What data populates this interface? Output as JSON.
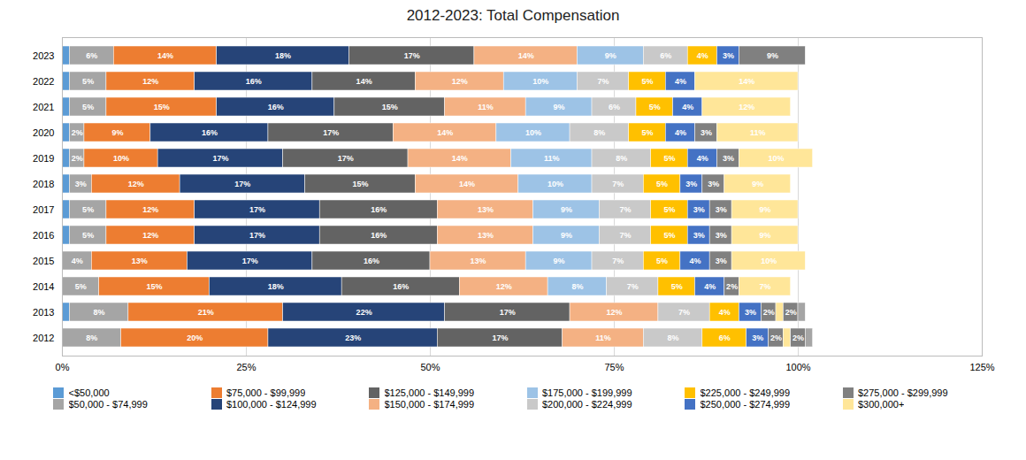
{
  "chart_data": {
    "type": "bar",
    "title": "2012-2023: Total Compensation",
    "orientation": "horizontal",
    "stacked": true,
    "data_labels": true,
    "grid": true,
    "legend": "bottom",
    "categories": [
      "2023",
      "2022",
      "2021",
      "2020",
      "2019",
      "2018",
      "2017",
      "2016",
      "2015",
      "2014",
      "2013",
      "2012"
    ],
    "xlim": [
      0,
      125
    ],
    "xticks": [
      {
        "value": 0,
        "label": "0%"
      },
      {
        "value": 25,
        "label": "25%"
      },
      {
        "value": 50,
        "label": "50%"
      },
      {
        "value": 75,
        "label": "75%"
      },
      {
        "value": 100,
        "label": "100%"
      },
      {
        "value": 125,
        "label": "125%"
      }
    ],
    "series": [
      {
        "name": "<$50,000",
        "color": "#5b9bd5",
        "values": [
          1,
          1,
          1,
          1,
          1,
          1,
          1,
          1,
          0,
          0,
          1,
          0
        ],
        "value_labels": [
          null,
          null,
          null,
          null,
          null,
          null,
          null,
          null,
          null,
          null,
          null,
          null
        ]
      },
      {
        "name": "$50,000 - $74,999",
        "color": "#a5a5a5",
        "values": [
          6,
          5,
          5,
          2,
          2,
          3,
          5,
          5,
          4,
          5,
          8,
          8
        ],
        "value_labels": [
          "6%",
          "5%",
          "5%",
          "2%",
          "2%",
          "3%",
          "5%",
          "5%",
          "4%",
          "5%",
          "8%",
          "8%"
        ]
      },
      {
        "name": "$75,000 - $99,999",
        "color": "#ed7d31",
        "values": [
          14,
          12,
          15,
          9,
          10,
          12,
          12,
          12,
          13,
          15,
          21,
          20
        ],
        "value_labels": [
          "14%",
          "12%",
          "15%",
          "9%",
          "10%",
          "12%",
          "12%",
          "12%",
          "13%",
          "15%",
          "21%",
          "20%"
        ]
      },
      {
        "name": "$100,000 - $124,999",
        "color": "#264478",
        "values": [
          18,
          16,
          16,
          16,
          17,
          17,
          17,
          17,
          17,
          18,
          22,
          23
        ],
        "value_labels": [
          "18%",
          "16%",
          "16%",
          "16%",
          "17%",
          "17%",
          "17%",
          "17%",
          "17%",
          "18%",
          "22%",
          "23%"
        ]
      },
      {
        "name": "$125,000 - $149,999",
        "color": "#636363",
        "values": [
          17,
          14,
          15,
          17,
          17,
          15,
          16,
          16,
          16,
          16,
          17,
          17
        ],
        "value_labels": [
          "17%",
          "14%",
          "15%",
          "17%",
          "17%",
          "15%",
          "16%",
          "16%",
          "16%",
          "16%",
          "17%",
          "17%"
        ]
      },
      {
        "name": "$150,000 - $174,999",
        "color": "#f4b183",
        "values": [
          14,
          12,
          11,
          14,
          14,
          14,
          13,
          13,
          13,
          12,
          12,
          11
        ],
        "value_labels": [
          "14%",
          "12%",
          "11%",
          "14%",
          "14%",
          "14%",
          "13%",
          "13%",
          "13%",
          "12%",
          "12%",
          "11%"
        ]
      },
      {
        "name": "$175,000 - $199,999",
        "color": "#9dc3e6",
        "values": [
          9,
          10,
          9,
          10,
          11,
          10,
          9,
          9,
          9,
          8,
          0,
          0
        ],
        "value_labels": [
          "9%",
          "10%",
          "9%",
          "10%",
          "11%",
          "10%",
          "9%",
          "9%",
          "9%",
          "8%",
          null,
          null
        ]
      },
      {
        "name": "$200,000 - $224,999",
        "color": "#c9c9c9",
        "values": [
          6,
          7,
          6,
          8,
          8,
          7,
          7,
          7,
          7,
          7,
          7,
          8
        ],
        "value_labels": [
          "6%",
          "7%",
          "6%",
          "8%",
          "8%",
          "7%",
          "7%",
          "7%",
          "7%",
          "7%",
          "7%",
          "8%"
        ]
      },
      {
        "name": "$225,000 - $249,999",
        "color": "#ffc000",
        "values": [
          4,
          5,
          5,
          5,
          5,
          5,
          5,
          5,
          5,
          5,
          4,
          6
        ],
        "value_labels": [
          "4%",
          "5%",
          "5%",
          "5%",
          "5%",
          "5%",
          "5%",
          "5%",
          "5%",
          "5%",
          "4%",
          "6%"
        ]
      },
      {
        "name": "$250,000 - $274,999",
        "color": "#4472c4",
        "values": [
          3,
          4,
          4,
          4,
          4,
          3,
          3,
          3,
          4,
          4,
          3,
          3
        ],
        "value_labels": [
          "3%",
          "4%",
          "4%",
          "4%",
          "4%",
          "3%",
          "3%",
          "3%",
          "4%",
          "4%",
          "3%",
          "3%"
        ]
      },
      {
        "name": "$275,000 - $299,999",
        "color": "#808080",
        "values": [
          9,
          0,
          0,
          3,
          3,
          3,
          3,
          3,
          3,
          2,
          2,
          2
        ],
        "value_labels": [
          "9%",
          null,
          null,
          "3%",
          "3%",
          "3%",
          "3%",
          "3%",
          "3%",
          "2%",
          "2%",
          "2%"
        ]
      },
      {
        "name": "$300,000+",
        "color": "#ffe699",
        "values": [
          0,
          14,
          12,
          11,
          10,
          9,
          9,
          9,
          10,
          7,
          1,
          1
        ],
        "value_labels": [
          null,
          "14%",
          "12%",
          "11%",
          "10%",
          "9%",
          "9%",
          "9%",
          "10%",
          "7%",
          null,
          null
        ]
      },
      {
        "color": "#808080",
        "values": [
          null,
          null,
          null,
          null,
          null,
          null,
          null,
          null,
          null,
          null,
          2,
          2
        ],
        "value_labels": [
          null,
          null,
          null,
          null,
          null,
          null,
          null,
          null,
          null,
          null,
          "2%",
          "2%"
        ]
      },
      {
        "color": "#a5a5a5",
        "values": [
          null,
          null,
          null,
          null,
          null,
          null,
          null,
          null,
          null,
          null,
          1,
          1
        ],
        "value_labels": [
          null,
          null,
          null,
          null,
          null,
          null,
          null,
          null,
          null,
          null,
          null,
          null
        ]
      }
    ]
  }
}
